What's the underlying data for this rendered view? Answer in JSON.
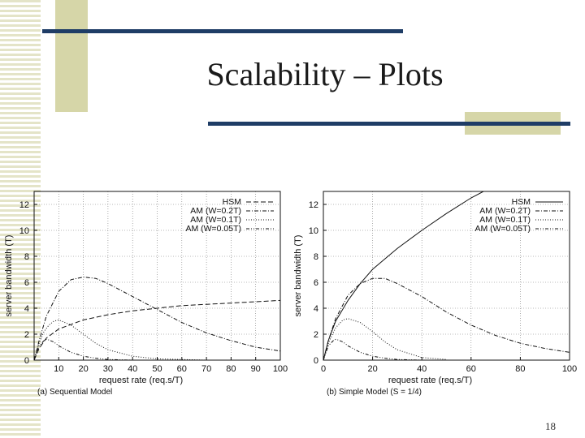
{
  "slide": {
    "title": "Scalability – Plots",
    "page_number": "18"
  },
  "colors": {
    "decor_bar": "#1f3d66",
    "decor_block": "#d6d6a8",
    "decor_stripe": "#e4e4c8"
  },
  "chart_data": [
    {
      "type": "line",
      "caption": "(a) Sequential Model",
      "xlabel": "request rate (req.s/T)",
      "ylabel": "server bandwidth (T)",
      "xlim": [
        0,
        100
      ],
      "ylim": [
        0,
        13
      ],
      "xticks": [
        10,
        20,
        30,
        40,
        50,
        60,
        70,
        80,
        90,
        100
      ],
      "yticks": [
        0,
        2,
        4,
        6,
        8,
        10,
        12
      ],
      "grid": true,
      "legend_position": "top-right",
      "series": [
        {
          "name": "HSM",
          "style": "dashed",
          "x": [
            0,
            2,
            5,
            10,
            20,
            30,
            40,
            50,
            60,
            70,
            80,
            90,
            100
          ],
          "y": [
            0,
            0.9,
            1.7,
            2.4,
            3.1,
            3.5,
            3.8,
            4.0,
            4.2,
            4.3,
            4.4,
            4.5,
            4.6
          ]
        },
        {
          "name": "AM (W=0.2T)",
          "style": "dashdot",
          "x": [
            0,
            2,
            5,
            10,
            15,
            20,
            25,
            30,
            40,
            50,
            60,
            70,
            80,
            90,
            100
          ],
          "y": [
            0,
            1.5,
            3.4,
            5.3,
            6.2,
            6.4,
            6.3,
            5.9,
            4.9,
            3.9,
            2.9,
            2.1,
            1.5,
            1.0,
            0.7
          ]
        },
        {
          "name": "AM (W=0.1T)",
          "style": "dotted",
          "x": [
            0,
            2,
            4,
            6,
            8,
            10,
            15,
            20,
            25,
            30,
            40,
            50,
            60,
            70
          ],
          "y": [
            0,
            1.3,
            2.2,
            2.7,
            3.0,
            3.1,
            2.7,
            2.0,
            1.3,
            0.8,
            0.3,
            0.1,
            0.05,
            0
          ]
        },
        {
          "name": "AM (W=0.05T)",
          "style": "dashdotdot",
          "x": [
            0,
            2,
            4,
            5,
            6,
            8,
            10,
            15,
            20,
            25,
            30,
            40
          ],
          "y": [
            0,
            1.1,
            1.5,
            1.6,
            1.55,
            1.4,
            1.1,
            0.6,
            0.3,
            0.15,
            0.05,
            0
          ]
        }
      ]
    },
    {
      "type": "line",
      "caption": "(b) Simple Model (S = 1/4)",
      "xlabel": "request rate (req.s/T)",
      "ylabel": "server bandwidth (T)",
      "xlim": [
        0,
        100
      ],
      "ylim": [
        0,
        13
      ],
      "xticks": [
        0,
        20,
        40,
        60,
        80,
        100
      ],
      "yticks": [
        0,
        2,
        4,
        6,
        8,
        10,
        12
      ],
      "grid": true,
      "legend_position": "top-right",
      "series": [
        {
          "name": "HSM",
          "style": "solid",
          "x": [
            0,
            2,
            5,
            10,
            15,
            20,
            30,
            40,
            50,
            60,
            65
          ],
          "y": [
            0,
            1.5,
            3.0,
            4.6,
            5.9,
            7.0,
            8.6,
            10.0,
            11.3,
            12.5,
            13.0
          ]
        },
        {
          "name": "AM (W=0.2T)",
          "style": "dashdot",
          "x": [
            0,
            2,
            5,
            10,
            15,
            20,
            25,
            30,
            40,
            50,
            60,
            70,
            80,
            90,
            100
          ],
          "y": [
            0,
            1.5,
            3.2,
            5.0,
            5.9,
            6.3,
            6.3,
            5.9,
            4.9,
            3.7,
            2.7,
            1.9,
            1.3,
            0.9,
            0.6
          ]
        },
        {
          "name": "AM (W=0.1T)",
          "style": "dotted",
          "x": [
            0,
            2,
            5,
            8,
            10,
            15,
            20,
            25,
            30,
            40,
            50
          ],
          "y": [
            0,
            1.3,
            2.5,
            3.1,
            3.2,
            2.9,
            2.2,
            1.4,
            0.8,
            0.2,
            0.05
          ]
        },
        {
          "name": "AM (W=0.05T)",
          "style": "dashdotdot",
          "x": [
            0,
            2,
            4,
            5,
            6,
            8,
            10,
            15,
            20,
            25,
            30,
            40
          ],
          "y": [
            0,
            1.1,
            1.5,
            1.6,
            1.55,
            1.4,
            1.1,
            0.6,
            0.3,
            0.15,
            0.05,
            0
          ]
        }
      ]
    }
  ]
}
